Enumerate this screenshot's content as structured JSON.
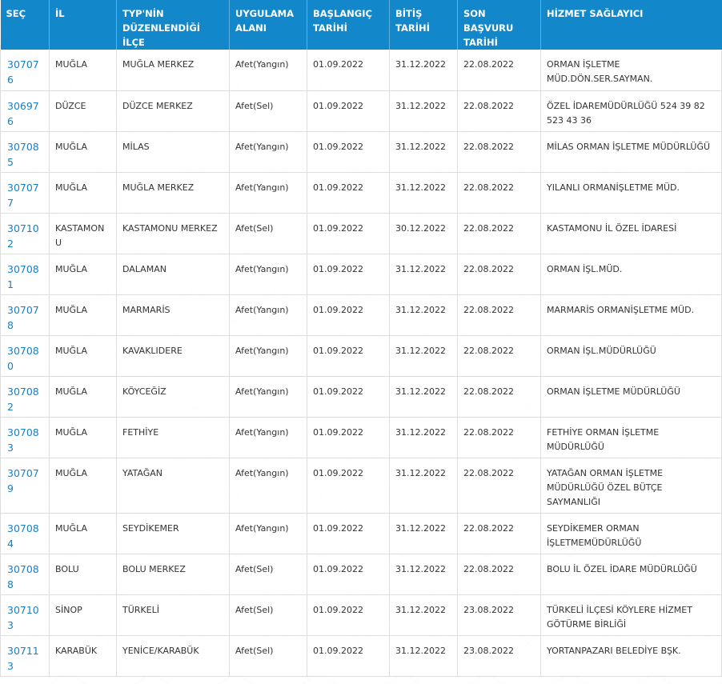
{
  "table": {
    "headers": [
      "SEÇ",
      "İL",
      "TYP'nin Düzenlendiği İlçe",
      "UYGULAMA ALANI",
      "BAŞLANGIÇ TARİHİ",
      "BİTİŞ TARİHİ",
      "SON BAŞVURU TARİHİ",
      "HİZMET SAĞLAYICI"
    ],
    "headers_display": [
      "SEÇ",
      "İL",
      "TYP'NİN DÜZENLENDİĞİ İLÇE",
      "UYGULAMA ALANI",
      "BAŞLANGIÇ TARİHİ",
      "BİTİŞ TARİHİ",
      "SON BAŞVURU TARİHİ",
      "HİZMET SAĞLAYICI"
    ],
    "rows": [
      {
        "sec": "307076",
        "il": "MUĞLA",
        "ilce": "MUĞLA MERKEZ",
        "alan": "Afet(Yangın)",
        "baslangic": "01.09.2022",
        "bitis": "31.12.2022",
        "son_basvuru": "22.08.2022",
        "saglayici": "ORMAN İŞLETME MÜD.DÖN.SER.SAYMAN."
      },
      {
        "sec": "306976",
        "il": "DÜZCE",
        "ilce": "DÜZCE MERKEZ",
        "alan": "Afet(Sel)",
        "baslangic": "01.09.2022",
        "bitis": "31.12.2022",
        "son_basvuru": "22.08.2022",
        "saglayici": "ÖZEL İDAREMÜDÜRLÜĞÜ 524 39 82 523 43 36"
      },
      {
        "sec": "307085",
        "il": "MUĞLA",
        "ilce": "MİLAS",
        "alan": "Afet(Yangın)",
        "baslangic": "01.09.2022",
        "bitis": "31.12.2022",
        "son_basvuru": "22.08.2022",
        "saglayici": "MİLAS ORMAN İŞLETME MÜDÜRLÜĞÜ"
      },
      {
        "sec": "307077",
        "il": "MUĞLA",
        "ilce": "MUĞLA MERKEZ",
        "alan": "Afet(Yangın)",
        "baslangic": "01.09.2022",
        "bitis": "31.12.2022",
        "son_basvuru": "22.08.2022",
        "saglayici": "YILANLI ORMANİŞLETME MÜD."
      },
      {
        "sec": "307102",
        "il": "KASTAMONU",
        "ilce": "KASTAMONU MERKEZ",
        "alan": "Afet(Sel)",
        "baslangic": "01.09.2022",
        "bitis": "30.12.2022",
        "son_basvuru": "22.08.2022",
        "saglayici": "KASTAMONU İL ÖZEL İDARESİ"
      },
      {
        "sec": "307081",
        "il": "MUĞLA",
        "ilce": "DALAMAN",
        "alan": "Afet(Yangın)",
        "baslangic": "01.09.2022",
        "bitis": "31.12.2022",
        "son_basvuru": "22.08.2022",
        "saglayici": "ORMAN İŞL.MÜD."
      },
      {
        "sec": "307078",
        "il": "MUĞLA",
        "ilce": "MARMARİS",
        "alan": "Afet(Yangın)",
        "baslangic": "01.09.2022",
        "bitis": "31.12.2022",
        "son_basvuru": "22.08.2022",
        "saglayici": "MARMARİS ORMANİŞLETME MÜD."
      },
      {
        "sec": "307080",
        "il": "MUĞLA",
        "ilce": "KAVAKLIDERE",
        "alan": "Afet(Yangın)",
        "baslangic": "01.09.2022",
        "bitis": "31.12.2022",
        "son_basvuru": "22.08.2022",
        "saglayici": "ORMAN İŞL.MÜDÜRLÜĞÜ"
      },
      {
        "sec": "307082",
        "il": "MUĞLA",
        "ilce": "KÖYCEĞİZ",
        "alan": "Afet(Yangın)",
        "baslangic": "01.09.2022",
        "bitis": "31.12.2022",
        "son_basvuru": "22.08.2022",
        "saglayici": "ORMAN İŞLETME MÜDÜRLÜĞÜ"
      },
      {
        "sec": "307083",
        "il": "MUĞLA",
        "ilce": "FETHİYE",
        "alan": "Afet(Yangın)",
        "baslangic": "01.09.2022",
        "bitis": "31.12.2022",
        "son_basvuru": "22.08.2022",
        "saglayici": "FETHİYE ORMAN İŞLETME MÜDÜRLÜĞÜ"
      },
      {
        "sec": "307079",
        "il": "MUĞLA",
        "ilce": "YATAĞAN",
        "alan": "Afet(Yangın)",
        "baslangic": "01.09.2022",
        "bitis": "31.12.2022",
        "son_basvuru": "22.08.2022",
        "saglayici": "YATAĞAN ORMAN İŞLETME MÜDÜRLÜĞÜ ÖZEL BÜTÇE SAYMANLIĞI"
      },
      {
        "sec": "307084",
        "il": "MUĞLA",
        "ilce": "SEYDİKEMER",
        "alan": "Afet(Yangın)",
        "baslangic": "01.09.2022",
        "bitis": "31.12.2022",
        "son_basvuru": "22.08.2022",
        "saglayici": "SEYDİKEMER ORMAN İŞLETMEMÜDÜRLÜĞÜ"
      },
      {
        "sec": "307088",
        "il": "BOLU",
        "ilce": "BOLU MERKEZ",
        "alan": "Afet(Sel)",
        "baslangic": "01.09.2022",
        "bitis": "31.12.2022",
        "son_basvuru": "22.08.2022",
        "saglayici": "BOLU İL ÖZEL İDARE MÜDÜRLÜĞÜ"
      },
      {
        "sec": "307103",
        "il": "SİNOP",
        "ilce": "TÜRKELİ",
        "alan": "Afet(Sel)",
        "baslangic": "01.09.2022",
        "bitis": "31.12.2022",
        "son_basvuru": "23.08.2022",
        "saglayici": "TÜRKELİ İLÇESİ KÖYLERE HİZMET GÖTÜRME BİRLİĞİ"
      },
      {
        "sec": "307113",
        "il": "KARABÜK",
        "ilce": "YENİCE/KARABÜK",
        "alan": "Afet(Sel)",
        "baslangic": "01.09.2022",
        "bitis": "31.12.2022",
        "son_basvuru": "23.08.2022",
        "saglayici": "YORTANPAZARI BELEDİYE BŞK."
      }
    ]
  },
  "colors": {
    "header_bg": "#1287c9",
    "header_text": "#ffffff",
    "link": "#1a7fc1",
    "grid": "#dddddd"
  }
}
